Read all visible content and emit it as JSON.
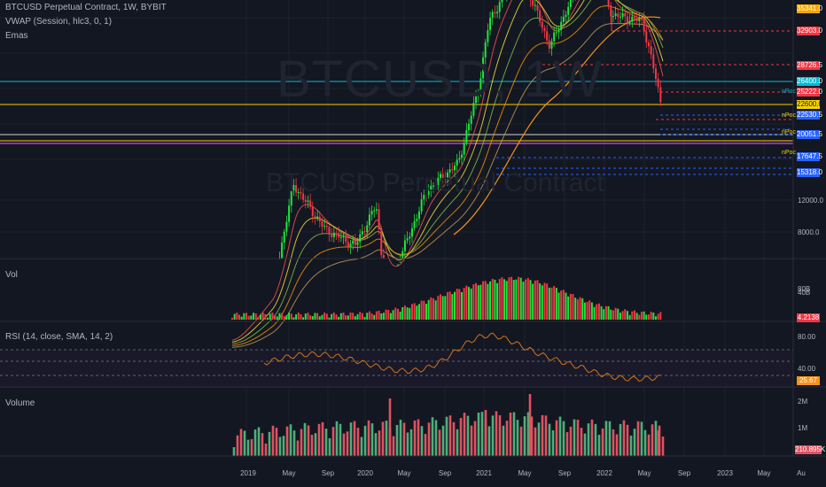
{
  "header": {
    "symbol_line": "BTCUSD Perpetual Contract, 1W, BYBIT",
    "vwap_line": "VWAP (Session, hlc3, 0, 1)",
    "emas_line": "Emas"
  },
  "watermark": {
    "big": "BTCUSD, 1W",
    "small": "BTCUSD Perpetual Contract"
  },
  "panes": {
    "vol_label": "Vol",
    "rsi_label": "RSI (14, close, SMA, 14, 2)",
    "volume_label": "Volume"
  },
  "price_axis": {
    "ticks": [
      "12000.0",
      "8000.0"
    ],
    "tags": [
      {
        "text": "35341.0",
        "color": "#f7a600"
      },
      {
        "text": "32903.0",
        "color": "#f23645"
      },
      {
        "text": "28726.5",
        "color": "#f23645"
      },
      {
        "text": "26400.0",
        "color": "#00bcd4"
      },
      {
        "text": "25222.0",
        "color": "#f23645"
      },
      {
        "text": "22600.0",
        "color": "#f7d100"
      },
      {
        "text": "22530.5",
        "color": "#2962ff"
      },
      {
        "text": "20051.5",
        "color": "#2962ff"
      },
      {
        "text": "17647.5",
        "color": "#2962ff"
      },
      {
        "text": "15318.0",
        "color": "#2962ff"
      }
    ],
    "side_notes": [
      "nPoc",
      "nPoc",
      "nPoc",
      "nPoc"
    ]
  },
  "vol_axis": {
    "ticks": [
      "80B",
      "40B"
    ],
    "last": "4.2138"
  },
  "rsi_axis": {
    "ticks": [
      "80.00",
      "40.00"
    ],
    "last": "25.67"
  },
  "volume_axis": {
    "ticks": [
      "2M",
      "1M"
    ],
    "last": "210.895K"
  },
  "time_axis": [
    "2019",
    "May",
    "Sep",
    "2020",
    "May",
    "Sep",
    "2021",
    "May",
    "Sep",
    "2022",
    "May",
    "Sep",
    "2023",
    "May",
    "Au"
  ],
  "colors": {
    "up": "#22e33c",
    "down": "#f23645",
    "rsi": "#d0731b",
    "ema_orange": "#f7931a",
    "vol2_up": "#4caf7a",
    "vol2_down": "#e05260"
  },
  "chart_data": {
    "type": "candlestick",
    "title": "BTCUSD Perpetual Contract, 1W, BYBIT",
    "x_start": "2018-12",
    "x_end": "2022-06",
    "close_path": [
      {
        "date": "2018-12",
        "close": 3500
      },
      {
        "date": "2019-04",
        "close": 5200
      },
      {
        "date": "2019-06",
        "close": 11500
      },
      {
        "date": "2019-09",
        "close": 8200
      },
      {
        "date": "2019-12",
        "close": 7200
      },
      {
        "date": "2020-02",
        "close": 9800
      },
      {
        "date": "2020-03",
        "close": 5000
      },
      {
        "date": "2020-07",
        "close": 11000
      },
      {
        "date": "2020-10",
        "close": 13500
      },
      {
        "date": "2020-12",
        "close": 24000
      },
      {
        "date": "2021-01",
        "close": 40000
      },
      {
        "date": "2021-04",
        "close": 60000
      },
      {
        "date": "2021-07",
        "close": 33000
      },
      {
        "date": "2021-11",
        "close": 66000
      },
      {
        "date": "2022-01",
        "close": 42000
      },
      {
        "date": "2022-04",
        "close": 40000
      },
      {
        "date": "2022-05",
        "close": 29000
      },
      {
        "date": "2022-06",
        "close": 20051.5
      }
    ],
    "rsi": {
      "overbought": 70,
      "oversold": 30,
      "last": 25.67
    },
    "last_volume": "210.895K",
    "last_vol": "4.2138"
  }
}
